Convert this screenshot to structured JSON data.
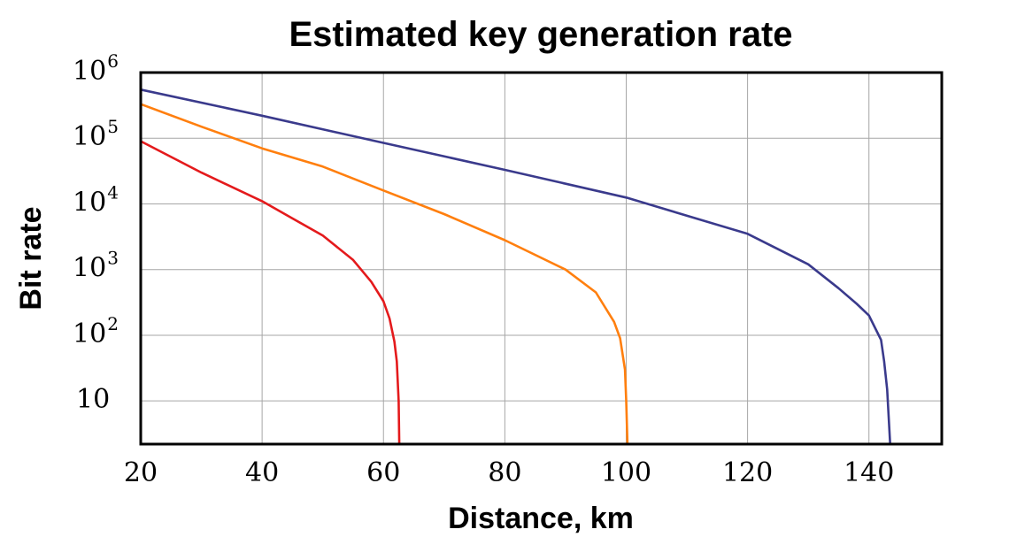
{
  "chart_data": {
    "type": "line",
    "title": "Estimated key generation rate",
    "xlabel": "Distance, km",
    "ylabel": "Bit rate",
    "xlim": [
      20,
      152
    ],
    "ylim": [
      2.2,
      1000000
    ],
    "yscale": "log",
    "grid": true,
    "x_ticks": [
      20,
      40,
      60,
      80,
      100,
      120,
      140
    ],
    "y_ticks": [
      {
        "value": 10,
        "base": "10",
        "exp": ""
      },
      {
        "value": 100,
        "base": "10",
        "exp": "2"
      },
      {
        "value": 1000,
        "base": "10",
        "exp": "3"
      },
      {
        "value": 10000,
        "base": "10",
        "exp": "4"
      },
      {
        "value": 100000,
        "base": "10",
        "exp": "5"
      },
      {
        "value": 1000000,
        "base": "10",
        "exp": "6"
      }
    ],
    "series": [
      {
        "color": "#3a3a8c",
        "points": [
          [
            20,
            550000
          ],
          [
            40,
            220000
          ],
          [
            60,
            85000
          ],
          [
            80,
            33000
          ],
          [
            100,
            12500
          ],
          [
            120,
            3500
          ],
          [
            130,
            1200
          ],
          [
            135,
            520
          ],
          [
            138,
            300
          ],
          [
            140,
            200
          ],
          [
            141,
            130
          ],
          [
            142,
            85
          ],
          [
            142.5,
            40
          ],
          [
            143,
            15
          ],
          [
            143.5,
            2.2
          ]
        ]
      },
      {
        "color": "#ff7f0e",
        "points": [
          [
            20,
            330000
          ],
          [
            30,
            150000
          ],
          [
            40,
            70000
          ],
          [
            50,
            37000
          ],
          [
            60,
            16000
          ],
          [
            70,
            7000
          ],
          [
            80,
            2800
          ],
          [
            90,
            1000
          ],
          [
            95,
            450
          ],
          [
            98,
            160
          ],
          [
            99,
            90
          ],
          [
            99.8,
            30
          ],
          [
            100,
            10
          ],
          [
            100.2,
            2.2
          ]
        ]
      },
      {
        "color": "#e41a1c",
        "points": [
          [
            20,
            90000
          ],
          [
            30,
            30000
          ],
          [
            40,
            11000
          ],
          [
            45,
            6000
          ],
          [
            50,
            3300
          ],
          [
            55,
            1400
          ],
          [
            58,
            650
          ],
          [
            60,
            330
          ],
          [
            61,
            180
          ],
          [
            61.8,
            80
          ],
          [
            62.2,
            40
          ],
          [
            62.5,
            10
          ],
          [
            62.6,
            2.2
          ]
        ]
      }
    ]
  }
}
